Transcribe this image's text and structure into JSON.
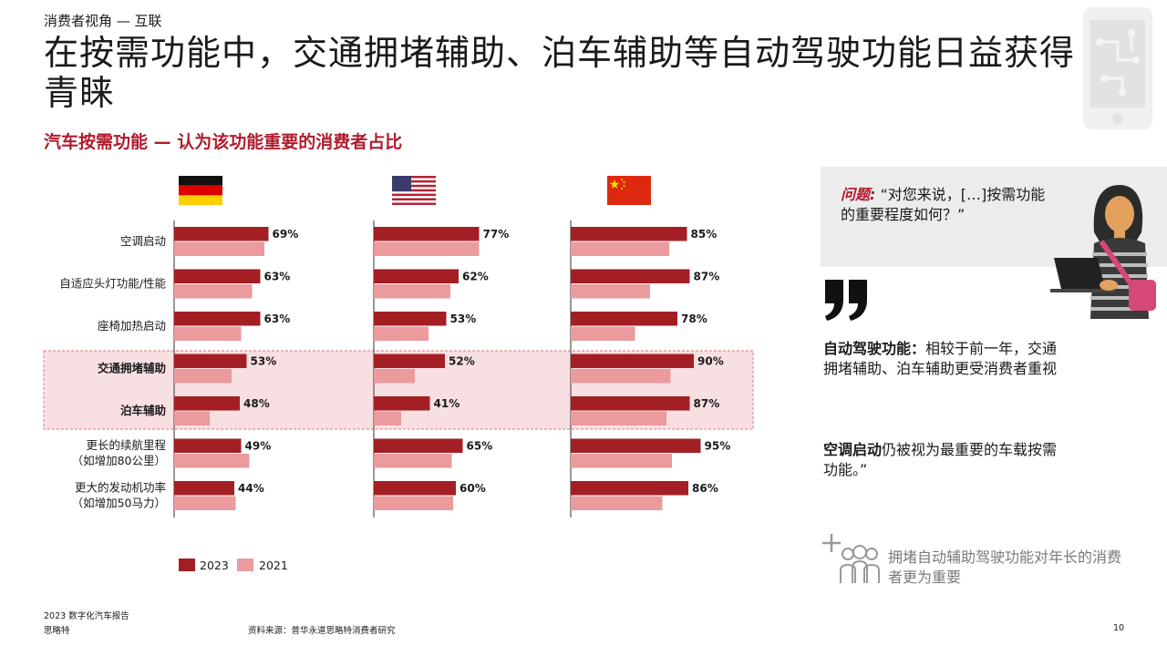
{
  "header": {
    "section": "消费者视角 — 互联",
    "title": "在按需功能中，交通拥堵辅助、泊车辅助等自动驾驶功能日益获得青睐",
    "subtitle": "汽车按需功能 — 认为该功能重要的消费者占比"
  },
  "colors": {
    "accent": "#b01c2e",
    "series_2023": "#a31f24",
    "series_2021": "#eb9a9d",
    "highlight_fill": "#f8dfe2",
    "highlight_border": "#e07a80",
    "panel_bg": "#ececec"
  },
  "chart_data": {
    "type": "bar",
    "orientation": "horizontal",
    "panels": [
      "germany-flag-icon",
      "usa-flag-icon",
      "china-flag-icon"
    ],
    "categories": [
      "空调启动",
      "自适应头灯功能/性能",
      "座椅加热启动",
      "交通拥堵辅助",
      "泊车辅助",
      "更长的续航里程\n（如增加80公里）",
      "更大的发动机功率\n（如增加50马力）"
    ],
    "highlighted_categories": [
      "交通拥堵辅助",
      "泊车辅助"
    ],
    "series": [
      {
        "name": "2023",
        "values": [
          [
            69,
            63,
            63,
            53,
            48,
            49,
            44
          ],
          [
            77,
            62,
            53,
            52,
            41,
            65,
            60
          ],
          [
            85,
            87,
            78,
            90,
            87,
            95,
            86
          ]
        ]
      },
      {
        "name": "2021",
        "values": [
          [
            66,
            57,
            49,
            42,
            26,
            55,
            45
          ],
          [
            77,
            56,
            40,
            30,
            20,
            57,
            58
          ],
          [
            72,
            58,
            47,
            73,
            70,
            74,
            67
          ]
        ]
      }
    ],
    "xlim": [
      0,
      100
    ],
    "legend": "bottom-left",
    "grid": false
  },
  "question": {
    "label": "问题:",
    "text": "“对您来说，[…]按需功能的重要程度如何？”"
  },
  "insights": [
    {
      "bold": "自动驾驶功能：",
      "text": "相较于前一年，交通拥堵辅助、泊车辅助更受消费者重视"
    },
    {
      "bold": "空调启动",
      "text": "仍被视为最重要的车载按需功能。”"
    }
  ],
  "callout": "拥堵自动辅助驾驶功能对年长的消费者更为重要",
  "footer": {
    "report": "2023  数字化汽车报告",
    "brand": "思略特",
    "source": "资料来源：普华永道思略特消费者研究",
    "page": "10"
  }
}
